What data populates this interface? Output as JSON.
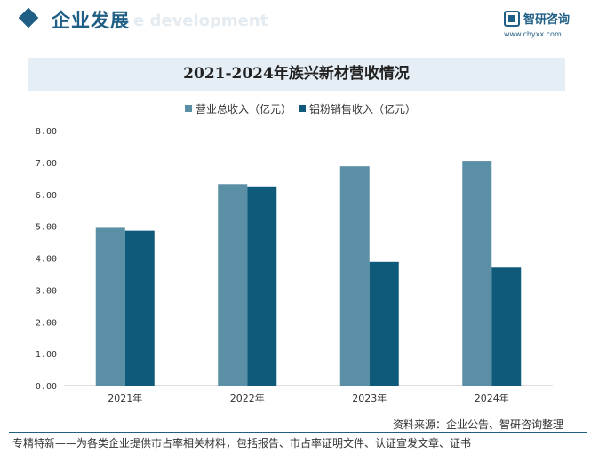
{
  "header": {
    "section_title": "企业发展",
    "section_subtitle": "e development",
    "logo_name": "智研咨询",
    "logo_url": "www.chyxx.com"
  },
  "colors": {
    "series1": "#5b8fa6",
    "series2": "#0f5a7a",
    "accent": "#1f5f86",
    "band": "#e6eef5"
  },
  "chart_data": {
    "type": "bar",
    "title": "2021-2024年族兴新材营收情况",
    "categories": [
      "2021年",
      "2022年",
      "2023年",
      "2024年"
    ],
    "series": [
      {
        "name": "营业总收入（亿元）",
        "values": [
          4.95,
          6.32,
          6.88,
          7.05
        ]
      },
      {
        "name": "铝粉销售收入（亿元）",
        "values": [
          4.86,
          6.25,
          3.88,
          3.7
        ]
      }
    ],
    "yticks": [
      "0.00",
      "1.00",
      "2.00",
      "3.00",
      "4.00",
      "5.00",
      "6.00",
      "7.00",
      "8.00"
    ],
    "ylim": [
      0,
      8
    ],
    "legend_position": "top",
    "grid": false
  },
  "footer": {
    "source": "资料来源：企业公告、智研咨询整理",
    "note": "专精特新——为各类企业提供市占率相关材料，包括报告、市占率证明文件、认证宣发文章、证书"
  }
}
